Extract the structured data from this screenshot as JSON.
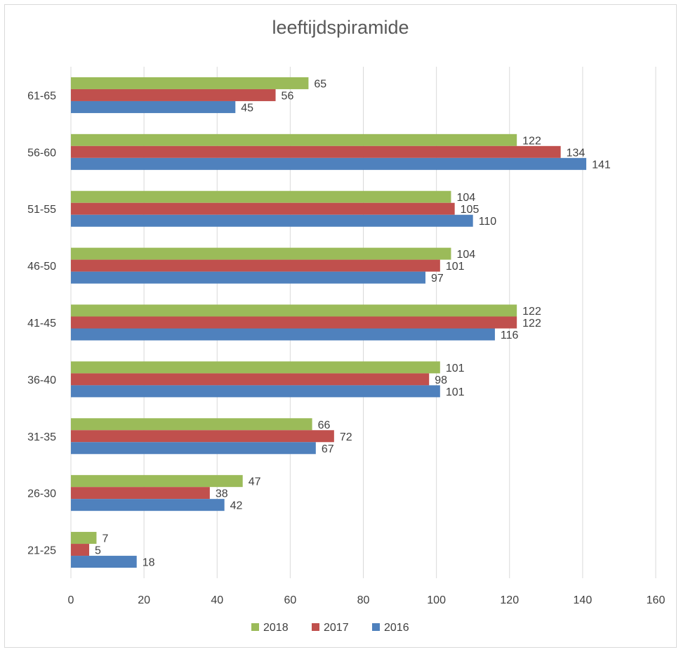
{
  "chart_data": {
    "type": "bar",
    "orientation": "horizontal",
    "title": "leeftijdspiramide",
    "categories": [
      "21-25",
      "26-30",
      "31-35",
      "36-40",
      "41-45",
      "46-50",
      "51-55",
      "56-60",
      "61-65"
    ],
    "series": [
      {
        "name": "2018",
        "color": "#9bbb59",
        "values": [
          7,
          47,
          66,
          101,
          122,
          104,
          104,
          122,
          65
        ]
      },
      {
        "name": "2017",
        "color": "#c0504d",
        "values": [
          5,
          38,
          72,
          98,
          122,
          101,
          105,
          134,
          56
        ]
      },
      {
        "name": "2016",
        "color": "#4f81bd",
        "values": [
          18,
          42,
          67,
          101,
          116,
          97,
          110,
          141,
          45
        ]
      }
    ],
    "xlim": [
      0,
      160
    ],
    "xticks": [
      0,
      20,
      40,
      60,
      80,
      100,
      120,
      140,
      160
    ],
    "grid": "vertical",
    "legend": "bottom",
    "data_labels": true
  }
}
